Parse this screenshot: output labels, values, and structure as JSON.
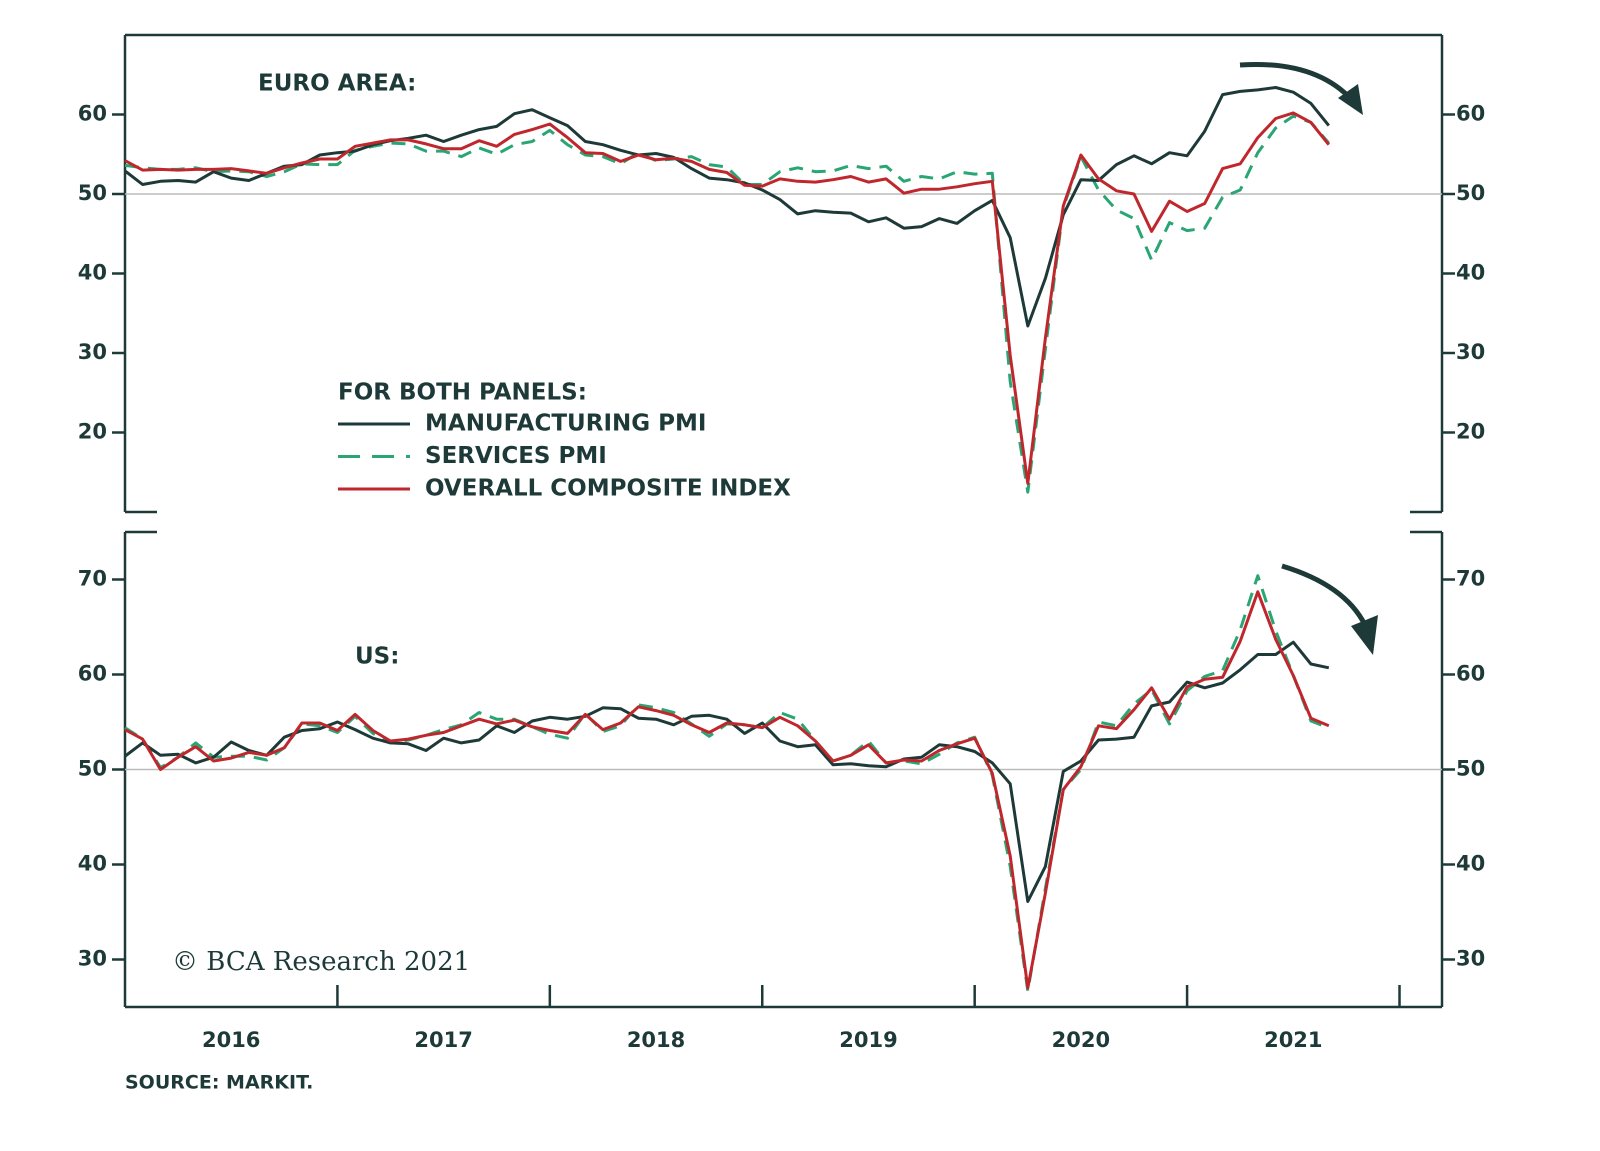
{
  "chart_data": [
    {
      "type": "line",
      "panel_label": "EURO AREA:",
      "legend_title": "FOR BOTH PANELS:",
      "x": [
        2016,
        2016.083,
        2016.167,
        2016.25,
        2016.333,
        2016.417,
        2016.5,
        2016.583,
        2016.667,
        2016.75,
        2016.833,
        2016.917,
        2017,
        2017.083,
        2017.167,
        2017.25,
        2017.333,
        2017.417,
        2017.5,
        2017.583,
        2017.667,
        2017.75,
        2017.833,
        2017.917,
        2018,
        2018.083,
        2018.167,
        2018.25,
        2018.333,
        2018.417,
        2018.5,
        2018.583,
        2018.667,
        2018.75,
        2018.833,
        2018.917,
        2019,
        2019.083,
        2019.167,
        2019.25,
        2019.333,
        2019.417,
        2019.5,
        2019.583,
        2019.667,
        2019.75,
        2019.833,
        2019.917,
        2020,
        2020.083,
        2020.167,
        2020.25,
        2020.333,
        2020.417,
        2020.5,
        2020.583,
        2020.667,
        2020.75,
        2020.833,
        2020.917,
        2021,
        2021.083,
        2021.167,
        2021.25,
        2021.333,
        2021.417,
        2021.5,
        2021.583,
        2021.667
      ],
      "xlim": [
        2016,
        2022.2
      ],
      "ylim": [
        10,
        70
      ],
      "yticks": [
        20,
        30,
        40,
        50,
        60
      ],
      "reference_line": 50,
      "series": [
        {
          "name": "MANUFACTURING PMI",
          "color": "#1d3a38",
          "style": "solid",
          "values": [
            52.9,
            51.2,
            51.6,
            51.7,
            51.5,
            52.8,
            52.0,
            51.7,
            52.6,
            53.5,
            53.7,
            54.9,
            55.2,
            55.4,
            56.2,
            56.7,
            57.0,
            57.4,
            56.6,
            57.4,
            58.1,
            58.5,
            60.1,
            60.6,
            59.6,
            58.6,
            56.6,
            56.2,
            55.5,
            54.9,
            55.1,
            54.6,
            53.2,
            52.0,
            51.8,
            51.4,
            50.5,
            49.3,
            47.5,
            47.9,
            47.7,
            47.6,
            46.5,
            47.0,
            45.7,
            45.9,
            46.9,
            46.3,
            47.9,
            49.2,
            44.5,
            33.4,
            39.4,
            47.4,
            51.8,
            51.7,
            53.7,
            54.8,
            53.8,
            55.2,
            54.8,
            57.9,
            62.5,
            62.9,
            63.1,
            63.4,
            62.8,
            61.4,
            58.6
          ]
        },
        {
          "name": "SERVICES PMI",
          "color": "#2aa574",
          "style": "dashed",
          "values": [
            53.6,
            53.3,
            53.1,
            53.1,
            53.3,
            52.8,
            52.9,
            52.8,
            52.2,
            52.8,
            53.8,
            53.7,
            53.7,
            55.5,
            56.0,
            56.4,
            56.3,
            55.4,
            55.4,
            54.7,
            55.8,
            55.0,
            56.2,
            56.6,
            58.0,
            56.2,
            54.9,
            54.7,
            53.8,
            55.2,
            54.2,
            54.4,
            54.7,
            53.7,
            53.4,
            51.2,
            51.2,
            52.8,
            53.3,
            52.8,
            52.9,
            53.6,
            53.2,
            53.5,
            51.6,
            52.2,
            51.9,
            52.8,
            52.5,
            52.6,
            26.4,
            12.5,
            30.5,
            48.3,
            54.7,
            50.5,
            48.0,
            46.9,
            41.7,
            46.4,
            45.4,
            45.7,
            49.6,
            50.5,
            55.2,
            58.3,
            59.8,
            59.0,
            56.4
          ]
        },
        {
          "name": "OVERALL COMPOSITE INDEX",
          "color": "#c0272d",
          "style": "solid",
          "values": [
            54.2,
            53.0,
            53.1,
            53.0,
            53.1,
            53.1,
            53.2,
            52.9,
            52.6,
            53.3,
            53.9,
            54.4,
            54.4,
            56.0,
            56.4,
            56.8,
            56.8,
            56.3,
            55.7,
            55.7,
            56.7,
            56.0,
            57.5,
            58.1,
            58.8,
            57.1,
            55.2,
            55.1,
            54.1,
            54.9,
            54.3,
            54.5,
            54.1,
            53.1,
            52.7,
            51.1,
            51.0,
            51.9,
            51.6,
            51.5,
            51.8,
            52.2,
            51.5,
            51.9,
            50.1,
            50.6,
            50.6,
            50.9,
            51.3,
            51.6,
            29.7,
            13.6,
            31.9,
            48.5,
            54.9,
            51.9,
            50.4,
            50.0,
            45.3,
            49.1,
            47.8,
            48.8,
            53.2,
            53.8,
            57.1,
            59.5,
            60.2,
            59.0,
            56.2
          ]
        }
      ]
    },
    {
      "type": "line",
      "panel_label": "US:",
      "x": [
        2016,
        2016.083,
        2016.167,
        2016.25,
        2016.333,
        2016.417,
        2016.5,
        2016.583,
        2016.667,
        2016.75,
        2016.833,
        2016.917,
        2017,
        2017.083,
        2017.167,
        2017.25,
        2017.333,
        2017.417,
        2017.5,
        2017.583,
        2017.667,
        2017.75,
        2017.833,
        2017.917,
        2018,
        2018.083,
        2018.167,
        2018.25,
        2018.333,
        2018.417,
        2018.5,
        2018.583,
        2018.667,
        2018.75,
        2018.833,
        2018.917,
        2019,
        2019.083,
        2019.167,
        2019.25,
        2019.333,
        2019.417,
        2019.5,
        2019.583,
        2019.667,
        2019.75,
        2019.833,
        2019.917,
        2020,
        2020.083,
        2020.167,
        2020.25,
        2020.333,
        2020.417,
        2020.5,
        2020.583,
        2020.667,
        2020.75,
        2020.833,
        2020.917,
        2021,
        2021.083,
        2021.167,
        2021.25,
        2021.333,
        2021.417,
        2021.5,
        2021.583,
        2021.667
      ],
      "xlim": [
        2016,
        2022.2
      ],
      "ylim": [
        25,
        75
      ],
      "yticks": [
        30,
        40,
        50,
        60,
        70
      ],
      "reference_line": 50,
      "xticks": [
        {
          "value": 2016.5,
          "label": "2016"
        },
        {
          "value": 2017.5,
          "label": "2017"
        },
        {
          "value": 2018.5,
          "label": "2018"
        },
        {
          "value": 2019.5,
          "label": "2019"
        },
        {
          "value": 2020.5,
          "label": "2020"
        },
        {
          "value": 2021.5,
          "label": "2021"
        }
      ],
      "xtick_marks": [
        2017,
        2018,
        2019,
        2020,
        2021,
        2022
      ],
      "series": [
        {
          "color": "#1d3a38",
          "style": "solid",
          "values": [
            51.4,
            52.8,
            51.5,
            51.6,
            50.7,
            51.3,
            52.9,
            52.0,
            51.5,
            53.4,
            54.1,
            54.3,
            55.0,
            54.2,
            53.3,
            52.8,
            52.7,
            52.0,
            53.3,
            52.8,
            53.1,
            54.6,
            53.9,
            55.1,
            55.5,
            55.3,
            55.6,
            56.5,
            56.4,
            55.4,
            55.3,
            54.7,
            55.6,
            55.7,
            55.3,
            53.8,
            54.9,
            53.0,
            52.4,
            52.6,
            50.5,
            50.6,
            50.4,
            50.3,
            51.1,
            51.3,
            52.6,
            52.4,
            51.9,
            50.7,
            48.5,
            36.1,
            39.8,
            49.8,
            50.9,
            53.1,
            53.2,
            53.4,
            56.7,
            57.1,
            59.2,
            58.6,
            59.1,
            60.5,
            62.1,
            62.1,
            63.4,
            61.1,
            60.7
          ]
        },
        {
          "color": "#2aa574",
          "style": "dashed",
          "values": [
            54.4,
            53.2,
            50.2,
            51.3,
            52.8,
            51.3,
            51.4,
            51.4,
            51.0,
            52.3,
            54.8,
            54.6,
            53.9,
            55.6,
            53.8,
            52.8,
            53.1,
            53.6,
            54.2,
            54.7,
            56.0,
            55.3,
            55.3,
            54.5,
            53.7,
            53.3,
            55.9,
            54.0,
            54.6,
            56.8,
            56.5,
            56.0,
            54.8,
            53.5,
            54.8,
            54.7,
            54.4,
            56.0,
            55.3,
            53.0,
            50.9,
            51.5,
            53.0,
            50.7,
            50.9,
            50.6,
            51.6,
            52.8,
            53.4,
            49.4,
            39.8,
            26.7,
            37.5,
            47.9,
            50.0,
            55.0,
            54.6,
            56.9,
            58.4,
            54.8,
            58.3,
            59.8,
            60.4,
            64.7,
            70.4,
            64.6,
            59.9,
            55.1,
            54.4
          ]
        },
        {
          "color": "#c0272d",
          "style": "solid",
          "values": [
            54.2,
            53.2,
            50.0,
            51.3,
            52.4,
            50.9,
            51.2,
            51.8,
            51.5,
            52.3,
            54.9,
            54.9,
            54.1,
            55.8,
            54.1,
            53.0,
            53.2,
            53.6,
            53.9,
            54.6,
            55.3,
            54.8,
            55.2,
            54.5,
            54.1,
            53.8,
            55.8,
            54.2,
            54.9,
            56.6,
            56.2,
            55.7,
            54.7,
            53.9,
            54.9,
            54.7,
            54.4,
            55.5,
            54.6,
            53.0,
            50.9,
            51.5,
            52.6,
            50.7,
            51.0,
            50.9,
            52.0,
            52.7,
            53.3,
            49.6,
            40.9,
            27.0,
            37.0,
            47.9,
            50.3,
            54.6,
            54.3,
            56.3,
            58.6,
            55.3,
            58.7,
            59.5,
            59.7,
            63.5,
            68.7,
            63.7,
            59.9,
            55.4,
            54.6
          ]
        }
      ]
    }
  ],
  "copyright": "© BCA Research 2021",
  "source": "SOURCE: MARKIT."
}
